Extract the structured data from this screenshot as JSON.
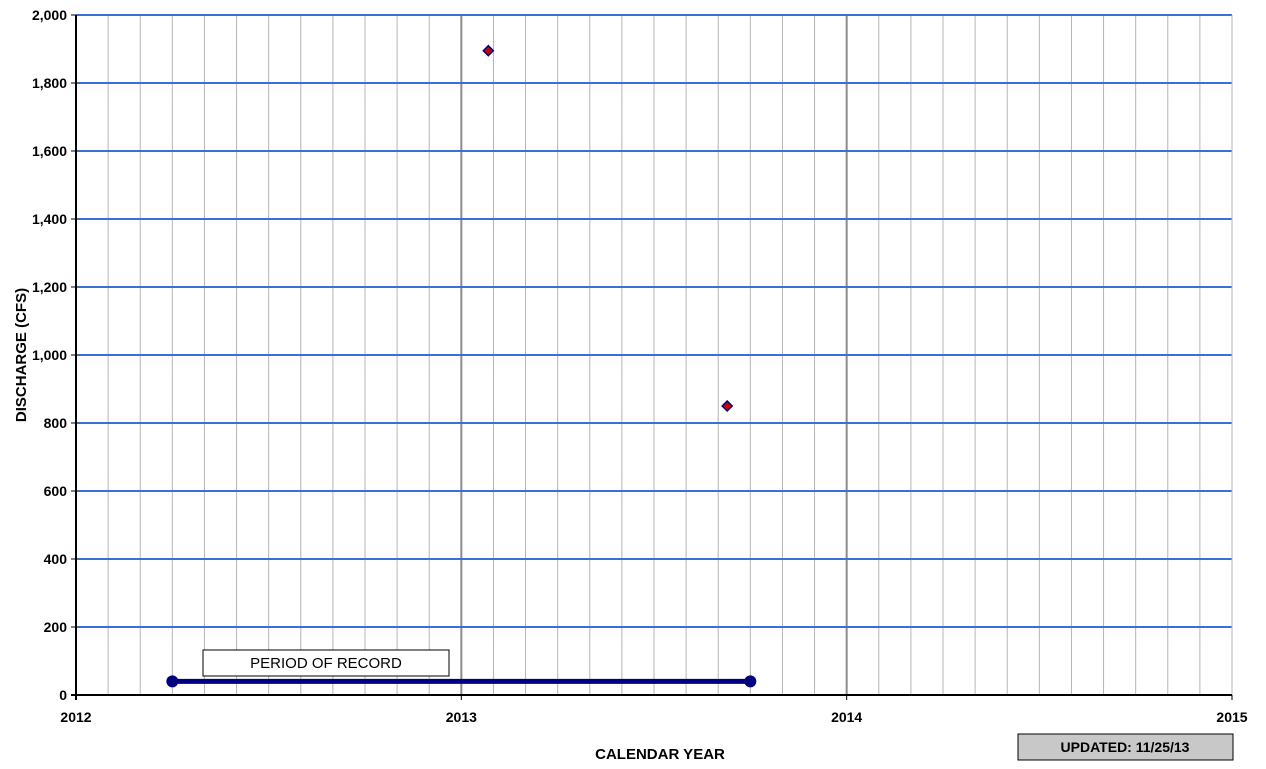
{
  "chart_data": {
    "type": "scatter",
    "title": "",
    "xlabel": "CALENDAR YEAR",
    "ylabel": "DISCHARGE  (CFS)",
    "xlim": [
      2012,
      2015
    ],
    "ylim": [
      0,
      2000
    ],
    "x_ticks": [
      "2012",
      "2013",
      "2014",
      "2015"
    ],
    "y_ticks": [
      "0",
      "200",
      "400",
      "600",
      "800",
      "1,000",
      "1,200",
      "1,400",
      "1,600",
      "1,800",
      "2,000"
    ],
    "grid": true,
    "series": [
      {
        "points": [
          {
            "x": 2013.07,
            "y": 1895
          },
          {
            "x": 2013.69,
            "y": 850
          }
        ],
        "color": "#cc0000",
        "marker": "diamond"
      }
    ],
    "period_of_record": {
      "label": "PERIOD OF RECORD",
      "start": 2012.25,
      "end": 2013.75,
      "y": 40,
      "color": "#000080"
    },
    "updated_label": "UPDATED:  11/25/13",
    "colors": {
      "major_horizontal_grid": "#3a6fd8",
      "minor_vertical_grid": "#b4b4b4",
      "major_vertical_grid": "#8c8c8c",
      "updated_box_fill": "#c8c8c8"
    }
  }
}
